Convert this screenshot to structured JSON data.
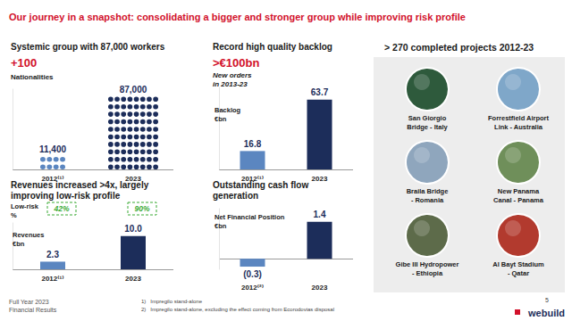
{
  "title": "Our journey in a snapshot: consolidating a bigger and stronger group while improving risk profile",
  "chart_data": [
    {
      "type": "pictorial",
      "title": "Systemic group with 87,000 workers",
      "annotations": [
        "+100",
        "Nationalities"
      ],
      "categories": [
        "2012⁽¹⁾",
        "2023"
      ],
      "values": [
        11400,
        87000
      ],
      "value_labels": [
        "11,400",
        "87,000"
      ],
      "colors": [
        "#5b86c0",
        "#1c2d5a"
      ],
      "ylim": [
        0,
        100000
      ],
      "yticks": [
        0
      ],
      "data_labels": true,
      "tick_labels": "x"
    },
    {
      "type": "bar",
      "title": "Record high quality backlog",
      "annotations": [
        ">€100bn",
        "New orders\nin 2013-23"
      ],
      "ylabel": "Backlog\n€bn",
      "categories": [
        "2012⁽¹⁾",
        "2023"
      ],
      "values": [
        16.8,
        63.7
      ],
      "colors": [
        "#5b86c0",
        "#1c2d5a"
      ],
      "ylim": [
        0,
        75
      ],
      "yticks": [
        0
      ],
      "data_labels": true,
      "tick_labels": "x"
    },
    {
      "type": "bar",
      "title": "Revenues increased >4x, largely\nimproving low-risk profile",
      "ylabel": "Revenues\n€bn",
      "low_risk": {
        "label": "Low-risk\n%",
        "values": [
          42,
          90
        ],
        "value_labels": [
          "42%",
          "90%"
        ]
      },
      "categories": [
        "2012⁽¹⁾",
        "2023"
      ],
      "values": [
        2.3,
        10
      ],
      "value_labels": [
        "2.3",
        "10.0"
      ],
      "colors": [
        "#5b86c0",
        "#1c2d5a"
      ],
      "ylim": [
        0,
        14
      ],
      "yticks": [
        0
      ],
      "data_labels": true,
      "tick_labels": "x"
    },
    {
      "type": "bar",
      "title": "Outstanding cash flow\ngeneration",
      "ylabel": "Net Financial Position\n€bn",
      "categories": [
        "2012⁽²⁾",
        "2023"
      ],
      "values": [
        -0.3,
        1.4
      ],
      "value_labels": [
        "(0.3)",
        "1.4"
      ],
      "colors": [
        "#5b86c0",
        "#1c2d5a"
      ],
      "ylim": [
        -0.4,
        1.9
      ],
      "yticks": [
        0
      ],
      "data_labels": true,
      "tick_labels": "x"
    }
  ],
  "projects": {
    "heading": "> 270 completed projects 2012-23",
    "items": [
      "San Giorgio\nBridge - Italy",
      "Forrestfield Airport\nLink - Australia",
      "Braila Bridge\n- Romania",
      "New Panama\nCanal - Panama",
      "Gibe III Hydropower\n- Ethiopia",
      "Al Bayt Stadium\n- Qatar"
    ]
  },
  "footer": {
    "report": "Full Year 2023\nFinancial Results",
    "notes": [
      "1)   Impregilo stand-alone",
      "2)   Impregilo stand-alone, excluding the effect coming from Ecorodovias disposal"
    ],
    "page": "5",
    "logo": "webuild"
  }
}
